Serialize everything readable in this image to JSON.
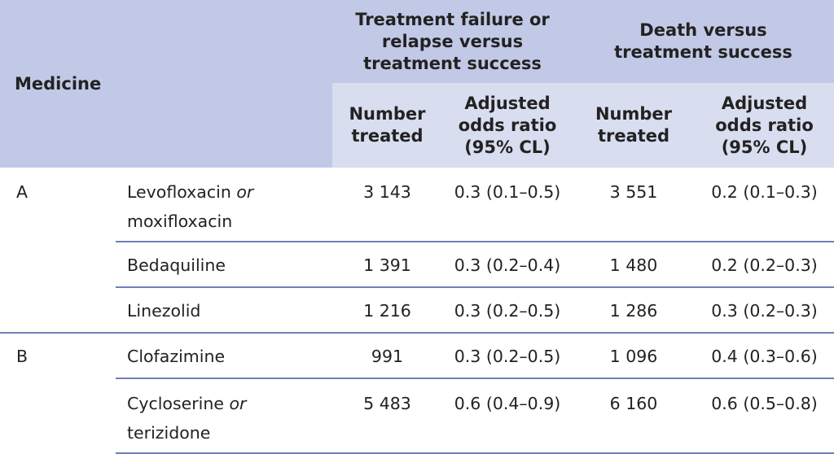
{
  "header": {
    "medicine": "Medicine",
    "group1": "Treatment failure or relapse versus treatment success",
    "group2": "Death versus treatment success",
    "number_treated": "Number treated",
    "adjusted_odds": "Adjusted odds ratio (95% CL)"
  },
  "rows": [
    {
      "group": "A",
      "name": "Levofloxacin",
      "conj": "or",
      "name2": "moxifloxacin",
      "n1": "3 143",
      "or1": "0.3 (0.1–0.5)",
      "n2": "3 551",
      "or2": "0.2 (0.1–0.3)"
    },
    {
      "group": "",
      "name": "Bedaquiline",
      "n1": "1 391",
      "or1": "0.3 (0.2–0.4)",
      "n2": "1 480",
      "or2": "0.2 (0.2–0.3)"
    },
    {
      "group": "",
      "name": "Linezolid",
      "n1": "1 216",
      "or1": "0.3 (0.2–0.5)",
      "n2": "1 286",
      "or2": "0.3 (0.2–0.3)"
    },
    {
      "group": "B",
      "name": "Clofazimine",
      "n1": "991",
      "or1": "0.3 (0.2–0.5)",
      "n2": "1 096",
      "or2": "0.4 (0.3–0.6)"
    },
    {
      "group": "",
      "name": "Cycloserine",
      "conj": "or",
      "name2": "terizidone",
      "n1": "5 483",
      "or1": "0.6 (0.4–0.9)",
      "n2": "6 160",
      "or2": "0.6 (0.5–0.8)"
    }
  ]
}
